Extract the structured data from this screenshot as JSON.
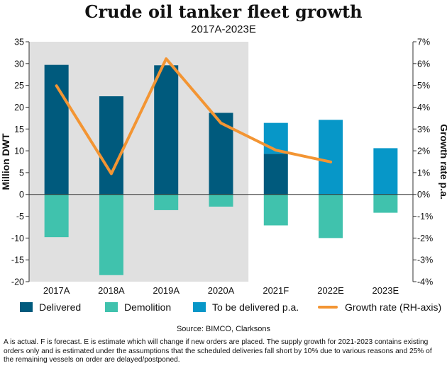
{
  "title": "Crude oil tanker fleet growth",
  "subtitle": "2017A-2023E",
  "source": "Source: BIMCO, Clarksons",
  "note": "A is actual. F is forecast. E is estimate which will change if new orders are placed. The supply growth for 2021-2023 contains existing orders only and is estimated under the assumptions that the scheduled deliveries fall short by 10% due to various reasons and 25% of the remaining vessels on order are delayed/postponed.",
  "colors": {
    "delivered": "#005a7d",
    "demolition": "#40c2ad",
    "to_be_delivered": "#0797c8",
    "growth_rate": "#f39533",
    "shaded_background": "#e0e0e0"
  },
  "chart_data": {
    "type": "bar",
    "title": "Crude oil tanker fleet growth",
    "subtitle": "2017A-2023E",
    "categories": [
      "2017A",
      "2018A",
      "2019A",
      "2020A",
      "2021F",
      "2022E",
      "2023E"
    ],
    "ylabel": "Million DWT",
    "ylim": [
      -20,
      35
    ],
    "yticks": [
      -20,
      -15,
      -10,
      -5,
      0,
      5,
      10,
      15,
      20,
      25,
      30,
      35
    ],
    "y2label": "Growth rate p.a.",
    "y2lim": [
      -4,
      7
    ],
    "y2ticks": [
      "-4%",
      "-3%",
      "-2%",
      "-1%",
      "0%",
      "1%",
      "2%",
      "3%",
      "4%",
      "5%",
      "6%",
      "7%"
    ],
    "shaded_categories": [
      "2017A",
      "2018A",
      "2019A",
      "2020A"
    ],
    "legend_position": "bottom",
    "series": [
      {
        "name": "Delivered",
        "type": "bar",
        "axis": "left",
        "values": [
          29.7,
          22.5,
          29.6,
          18.7,
          9.3,
          null,
          null
        ]
      },
      {
        "name": "Demolition",
        "type": "bar",
        "axis": "left",
        "values": [
          -9.8,
          -18.5,
          -3.6,
          -2.8,
          -7.1,
          -10.0,
          -4.2
        ]
      },
      {
        "name": "To be delivered p.a.",
        "type": "bar",
        "axis": "left",
        "values": [
          null,
          null,
          null,
          null,
          7.1,
          17.1,
          10.6
        ]
      },
      {
        "name": "Growth rate (RH-axis)",
        "type": "line",
        "axis": "right",
        "values": [
          4.98,
          0.95,
          6.22,
          3.27,
          2.03,
          1.49,
          null
        ]
      }
    ]
  }
}
